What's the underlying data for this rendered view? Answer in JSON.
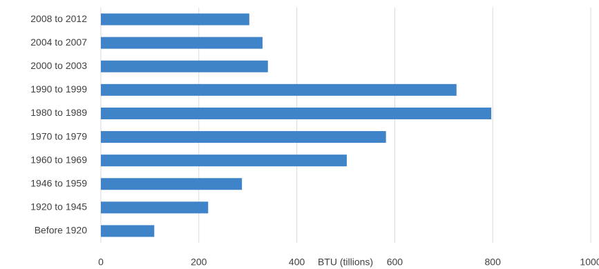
{
  "chart_data": {
    "type": "hbar",
    "x_label": "BTU (tillions)",
    "categories": [
      "Before 1920",
      "1920 to 1945",
      "1946 to 1959",
      "1960 to 1969",
      "1970 to 1979",
      "1980 to 1989",
      "1990 to 1999",
      "2000 to 2003",
      "2004 to 2007",
      "2008 to 2012"
    ],
    "values": [
      109,
      219,
      288,
      502,
      582,
      797,
      726,
      341,
      330,
      303
    ],
    "color": "#3f83c9",
    "xlim": [
      0,
      1000
    ],
    "xticks": [
      0,
      200,
      400,
      600,
      800,
      1000
    ],
    "grid": true
  }
}
